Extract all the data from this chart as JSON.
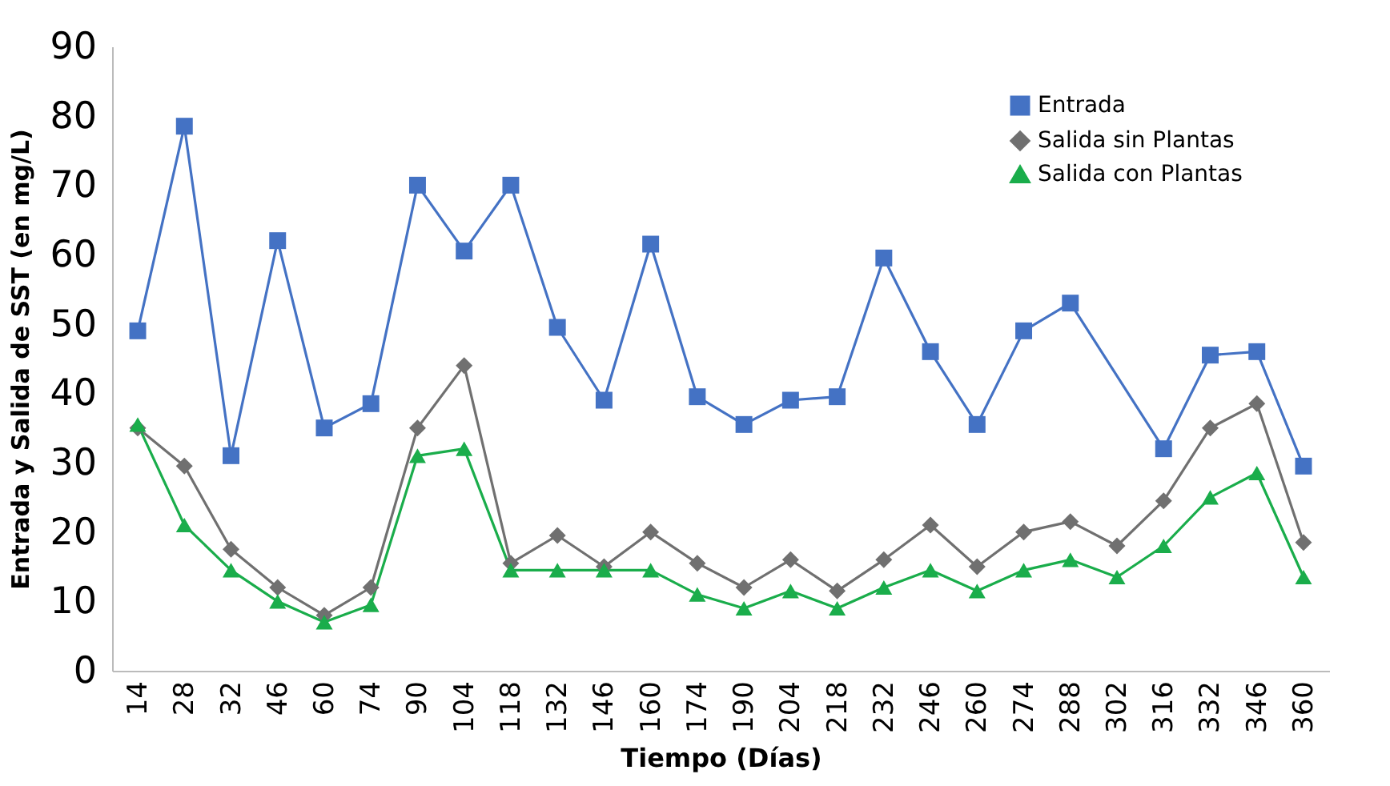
{
  "chart_data": {
    "type": "line",
    "xlabel": "Tiempo (Días)",
    "ylabel": "Entrada y Salida de SST (en mg/L)",
    "categories": [
      "14",
      "28",
      "32",
      "46",
      "60",
      "74",
      "90",
      "104",
      "118",
      "132",
      "146",
      "160",
      "174",
      "190",
      "204",
      "218",
      "232",
      "246",
      "260",
      "274",
      "288",
      "302",
      "316",
      "332",
      "346",
      "360"
    ],
    "series": [
      {
        "name": "Entrada",
        "color": "#4472c4",
        "marker": "square",
        "values": [
          49,
          78.5,
          31,
          62,
          35,
          38.5,
          70,
          60.5,
          70,
          49.5,
          39,
          61.5,
          39.5,
          35.5,
          39,
          39.5,
          59.5,
          46,
          35.5,
          49,
          53,
          null,
          32,
          45.5,
          46,
          29.5
        ]
      },
      {
        "name": "Salida sin Plantas",
        "color": "#707070",
        "marker": "diamond",
        "values": [
          35,
          29.5,
          17.5,
          12,
          8,
          12,
          35,
          44,
          15.5,
          19.5,
          15,
          20,
          15.5,
          12,
          16,
          11.5,
          16,
          21,
          15,
          20,
          21.5,
          18,
          24.5,
          35,
          38.5,
          18.5
        ]
      },
      {
        "name": "Salida con Plantas",
        "color": "#1aad4b",
        "marker": "triangle",
        "values": [
          35.5,
          21,
          14.5,
          10,
          7,
          9.5,
          31,
          32,
          14.5,
          14.5,
          14.5,
          14.5,
          11,
          9,
          11.5,
          9,
          12,
          14.5,
          11.5,
          14.5,
          16,
          13.5,
          18,
          25,
          28.5,
          13.5
        ]
      }
    ],
    "ylim": [
      0,
      90
    ],
    "yticks": [
      0,
      10,
      20,
      30,
      40,
      50,
      60,
      70,
      80,
      90
    ],
    "grid": false,
    "legend": "top right"
  }
}
